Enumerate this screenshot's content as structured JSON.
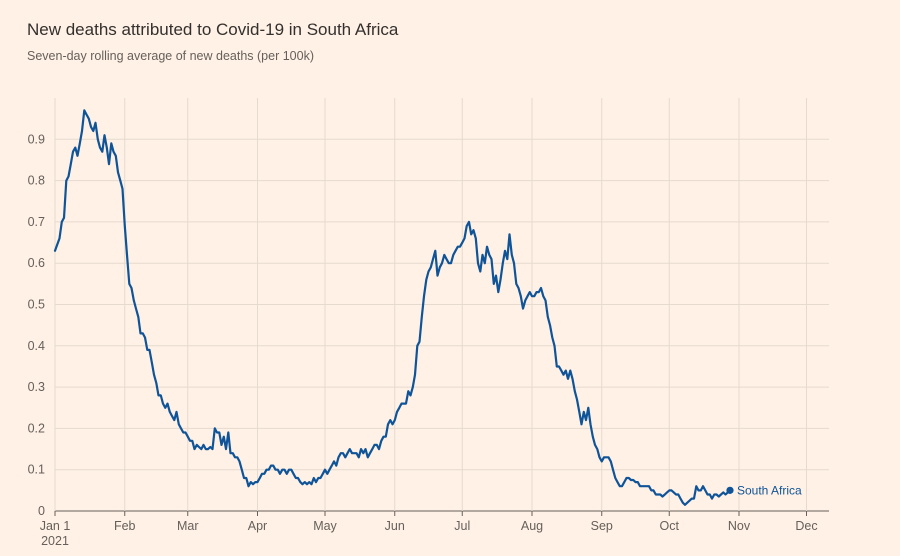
{
  "chart_data": {
    "type": "line",
    "title": "New deaths attributed to Covid-19 in South Africa",
    "subtitle": "Seven-day rolling average of new deaths (per 100k)",
    "xlabel": "",
    "ylabel": "",
    "xlim": [
      0,
      344
    ],
    "ylim": [
      0,
      1.0
    ],
    "grid": true,
    "y_ticks": [
      0,
      0.1,
      0.2,
      0.3,
      0.4,
      0.5,
      0.6,
      0.7,
      0.8,
      0.9
    ],
    "y_tick_labels": [
      "0",
      "0.1",
      "0.2",
      "0.3",
      "0.4",
      "0.5",
      "0.6",
      "0.7",
      "0.8",
      "0.9"
    ],
    "x_ticks": [
      {
        "day": 0,
        "label": "Jan 1",
        "sublabel": "2021"
      },
      {
        "day": 31,
        "label": "Feb"
      },
      {
        "day": 59,
        "label": "Mar"
      },
      {
        "day": 90,
        "label": "Apr"
      },
      {
        "day": 120,
        "label": "May"
      },
      {
        "day": 151,
        "label": "Jun"
      },
      {
        "day": 181,
        "label": "Jul"
      },
      {
        "day": 212,
        "label": "Aug"
      },
      {
        "day": 243,
        "label": "Sep"
      },
      {
        "day": 273,
        "label": "Oct"
      },
      {
        "day": 304,
        "label": "Nov"
      },
      {
        "day": 334,
        "label": "Dec"
      }
    ],
    "series": [
      {
        "name": "South Africa",
        "color": "#0f5499",
        "points": [
          [
            0,
            0.63
          ],
          [
            2,
            0.66
          ],
          [
            3,
            0.7
          ],
          [
            4,
            0.71
          ],
          [
            5,
            0.8
          ],
          [
            6,
            0.81
          ],
          [
            7,
            0.84
          ],
          [
            8,
            0.87
          ],
          [
            9,
            0.88
          ],
          [
            10,
            0.86
          ],
          [
            11,
            0.89
          ],
          [
            12,
            0.92
          ],
          [
            13,
            0.97
          ],
          [
            14,
            0.96
          ],
          [
            15,
            0.95
          ],
          [
            16,
            0.93
          ],
          [
            17,
            0.92
          ],
          [
            18,
            0.94
          ],
          [
            19,
            0.9
          ],
          [
            20,
            0.88
          ],
          [
            21,
            0.87
          ],
          [
            22,
            0.91
          ],
          [
            23,
            0.88
          ],
          [
            24,
            0.84
          ],
          [
            25,
            0.89
          ],
          [
            26,
            0.87
          ],
          [
            27,
            0.86
          ],
          [
            28,
            0.82
          ],
          [
            29,
            0.8
          ],
          [
            30,
            0.78
          ],
          [
            31,
            0.69
          ],
          [
            32,
            0.62
          ],
          [
            33,
            0.55
          ],
          [
            34,
            0.54
          ],
          [
            35,
            0.51
          ],
          [
            36,
            0.49
          ],
          [
            37,
            0.47
          ],
          [
            38,
            0.43
          ],
          [
            39,
            0.43
          ],
          [
            40,
            0.42
          ],
          [
            41,
            0.39
          ],
          [
            42,
            0.39
          ],
          [
            43,
            0.36
          ],
          [
            44,
            0.33
          ],
          [
            45,
            0.31
          ],
          [
            46,
            0.28
          ],
          [
            47,
            0.28
          ],
          [
            48,
            0.26
          ],
          [
            49,
            0.25
          ],
          [
            50,
            0.26
          ],
          [
            51,
            0.24
          ],
          [
            52,
            0.23
          ],
          [
            53,
            0.22
          ],
          [
            54,
            0.24
          ],
          [
            55,
            0.21
          ],
          [
            56,
            0.2
          ],
          [
            57,
            0.19
          ],
          [
            58,
            0.19
          ],
          [
            59,
            0.18
          ],
          [
            60,
            0.17
          ],
          [
            61,
            0.17
          ],
          [
            62,
            0.15
          ],
          [
            63,
            0.16
          ],
          [
            64,
            0.155
          ],
          [
            65,
            0.15
          ],
          [
            66,
            0.16
          ],
          [
            67,
            0.15
          ],
          [
            68,
            0.15
          ],
          [
            69,
            0.155
          ],
          [
            70,
            0.15
          ],
          [
            71,
            0.2
          ],
          [
            72,
            0.19
          ],
          [
            73,
            0.19
          ],
          [
            74,
            0.16
          ],
          [
            75,
            0.18
          ],
          [
            76,
            0.15
          ],
          [
            77,
            0.19
          ],
          [
            78,
            0.14
          ],
          [
            79,
            0.14
          ],
          [
            80,
            0.13
          ],
          [
            81,
            0.13
          ],
          [
            82,
            0.12
          ],
          [
            83,
            0.1
          ],
          [
            84,
            0.08
          ],
          [
            85,
            0.08
          ],
          [
            86,
            0.06
          ],
          [
            87,
            0.07
          ],
          [
            88,
            0.065
          ],
          [
            89,
            0.07
          ],
          [
            90,
            0.07
          ],
          [
            91,
            0.08
          ],
          [
            92,
            0.09
          ],
          [
            93,
            0.09
          ],
          [
            94,
            0.1
          ],
          [
            95,
            0.1
          ],
          [
            96,
            0.11
          ],
          [
            97,
            0.11
          ],
          [
            98,
            0.1
          ],
          [
            99,
            0.1
          ],
          [
            100,
            0.09
          ],
          [
            101,
            0.1
          ],
          [
            102,
            0.1
          ],
          [
            103,
            0.09
          ],
          [
            104,
            0.1
          ],
          [
            105,
            0.1
          ],
          [
            106,
            0.09
          ],
          [
            107,
            0.08
          ],
          [
            108,
            0.08
          ],
          [
            109,
            0.07
          ],
          [
            110,
            0.065
          ],
          [
            111,
            0.07
          ],
          [
            112,
            0.065
          ],
          [
            113,
            0.07
          ],
          [
            114,
            0.065
          ],
          [
            115,
            0.08
          ],
          [
            116,
            0.07
          ],
          [
            117,
            0.08
          ],
          [
            118,
            0.08
          ],
          [
            119,
            0.09
          ],
          [
            120,
            0.1
          ],
          [
            121,
            0.09
          ],
          [
            122,
            0.1
          ],
          [
            123,
            0.11
          ],
          [
            124,
            0.12
          ],
          [
            125,
            0.11
          ],
          [
            126,
            0.13
          ],
          [
            127,
            0.14
          ],
          [
            128,
            0.14
          ],
          [
            129,
            0.13
          ],
          [
            130,
            0.14
          ],
          [
            131,
            0.15
          ],
          [
            132,
            0.14
          ],
          [
            133,
            0.14
          ],
          [
            134,
            0.14
          ],
          [
            135,
            0.13
          ],
          [
            136,
            0.15
          ],
          [
            137,
            0.14
          ],
          [
            138,
            0.15
          ],
          [
            139,
            0.13
          ],
          [
            140,
            0.14
          ],
          [
            141,
            0.15
          ],
          [
            142,
            0.16
          ],
          [
            143,
            0.16
          ],
          [
            144,
            0.15
          ],
          [
            145,
            0.17
          ],
          [
            146,
            0.18
          ],
          [
            147,
            0.18
          ],
          [
            148,
            0.21
          ],
          [
            149,
            0.22
          ],
          [
            150,
            0.21
          ],
          [
            151,
            0.22
          ],
          [
            152,
            0.24
          ],
          [
            153,
            0.25
          ],
          [
            154,
            0.26
          ],
          [
            155,
            0.26
          ],
          [
            156,
            0.26
          ],
          [
            157,
            0.29
          ],
          [
            158,
            0.28
          ],
          [
            159,
            0.3
          ],
          [
            160,
            0.33
          ],
          [
            161,
            0.4
          ],
          [
            162,
            0.41
          ],
          [
            163,
            0.47
          ],
          [
            164,
            0.52
          ],
          [
            165,
            0.56
          ],
          [
            166,
            0.58
          ],
          [
            167,
            0.59
          ],
          [
            168,
            0.61
          ],
          [
            169,
            0.63
          ],
          [
            170,
            0.57
          ],
          [
            171,
            0.59
          ],
          [
            172,
            0.6
          ],
          [
            173,
            0.62
          ],
          [
            174,
            0.61
          ],
          [
            175,
            0.6
          ],
          [
            176,
            0.6
          ],
          [
            177,
            0.62
          ],
          [
            178,
            0.63
          ],
          [
            179,
            0.64
          ],
          [
            180,
            0.64
          ],
          [
            181,
            0.65
          ],
          [
            182,
            0.66
          ],
          [
            183,
            0.69
          ],
          [
            184,
            0.7
          ],
          [
            185,
            0.67
          ],
          [
            186,
            0.68
          ],
          [
            187,
            0.66
          ],
          [
            188,
            0.6
          ],
          [
            189,
            0.58
          ],
          [
            190,
            0.62
          ],
          [
            191,
            0.6
          ],
          [
            192,
            0.64
          ],
          [
            193,
            0.62
          ],
          [
            194,
            0.61
          ],
          [
            195,
            0.55
          ],
          [
            196,
            0.57
          ],
          [
            197,
            0.53
          ],
          [
            198,
            0.56
          ],
          [
            199,
            0.6
          ],
          [
            200,
            0.63
          ],
          [
            201,
            0.61
          ],
          [
            202,
            0.67
          ],
          [
            203,
            0.62
          ],
          [
            204,
            0.6
          ],
          [
            205,
            0.55
          ],
          [
            206,
            0.54
          ],
          [
            207,
            0.52
          ],
          [
            208,
            0.49
          ],
          [
            209,
            0.51
          ],
          [
            210,
            0.52
          ],
          [
            211,
            0.53
          ],
          [
            212,
            0.52
          ],
          [
            213,
            0.52
          ],
          [
            214,
            0.53
          ],
          [
            215,
            0.53
          ],
          [
            216,
            0.54
          ],
          [
            217,
            0.52
          ],
          [
            218,
            0.51
          ],
          [
            219,
            0.47
          ],
          [
            220,
            0.45
          ],
          [
            221,
            0.42
          ],
          [
            222,
            0.4
          ],
          [
            223,
            0.35
          ],
          [
            224,
            0.35
          ],
          [
            225,
            0.34
          ],
          [
            226,
            0.33
          ],
          [
            227,
            0.34
          ],
          [
            228,
            0.32
          ],
          [
            229,
            0.34
          ],
          [
            230,
            0.32
          ],
          [
            231,
            0.29
          ],
          [
            232,
            0.27
          ],
          [
            233,
            0.24
          ],
          [
            234,
            0.21
          ],
          [
            235,
            0.24
          ],
          [
            236,
            0.22
          ],
          [
            237,
            0.25
          ],
          [
            238,
            0.21
          ],
          [
            239,
            0.18
          ],
          [
            240,
            0.16
          ],
          [
            241,
            0.15
          ],
          [
            242,
            0.13
          ],
          [
            243,
            0.12
          ],
          [
            244,
            0.13
          ],
          [
            245,
            0.13
          ],
          [
            246,
            0.13
          ],
          [
            247,
            0.12
          ],
          [
            248,
            0.1
          ],
          [
            249,
            0.08
          ],
          [
            250,
            0.07
          ],
          [
            251,
            0.06
          ],
          [
            252,
            0.06
          ],
          [
            253,
            0.07
          ],
          [
            254,
            0.08
          ],
          [
            255,
            0.08
          ],
          [
            256,
            0.075
          ],
          [
            257,
            0.075
          ],
          [
            258,
            0.07
          ],
          [
            259,
            0.07
          ],
          [
            260,
            0.06
          ],
          [
            261,
            0.06
          ],
          [
            262,
            0.06
          ],
          [
            263,
            0.06
          ],
          [
            264,
            0.06
          ],
          [
            265,
            0.05
          ],
          [
            266,
            0.05
          ],
          [
            267,
            0.04
          ],
          [
            268,
            0.04
          ],
          [
            269,
            0.04
          ],
          [
            270,
            0.035
          ],
          [
            271,
            0.04
          ],
          [
            272,
            0.045
          ],
          [
            273,
            0.05
          ],
          [
            274,
            0.05
          ],
          [
            275,
            0.045
          ],
          [
            276,
            0.04
          ],
          [
            277,
            0.04
          ],
          [
            278,
            0.03
          ],
          [
            279,
            0.02
          ],
          [
            280,
            0.015
          ],
          [
            281,
            0.02
          ],
          [
            282,
            0.025
          ],
          [
            283,
            0.03
          ],
          [
            284,
            0.03
          ],
          [
            285,
            0.06
          ],
          [
            286,
            0.05
          ],
          [
            287,
            0.05
          ],
          [
            288,
            0.06
          ],
          [
            289,
            0.05
          ],
          [
            290,
            0.04
          ],
          [
            291,
            0.04
          ],
          [
            292,
            0.03
          ],
          [
            293,
            0.04
          ],
          [
            294,
            0.04
          ],
          [
            295,
            0.035
          ],
          [
            296,
            0.04
          ],
          [
            297,
            0.045
          ],
          [
            298,
            0.04
          ],
          [
            299,
            0.045
          ],
          [
            300,
            0.05
          ]
        ]
      }
    ],
    "legend": "end-of-line label"
  }
}
